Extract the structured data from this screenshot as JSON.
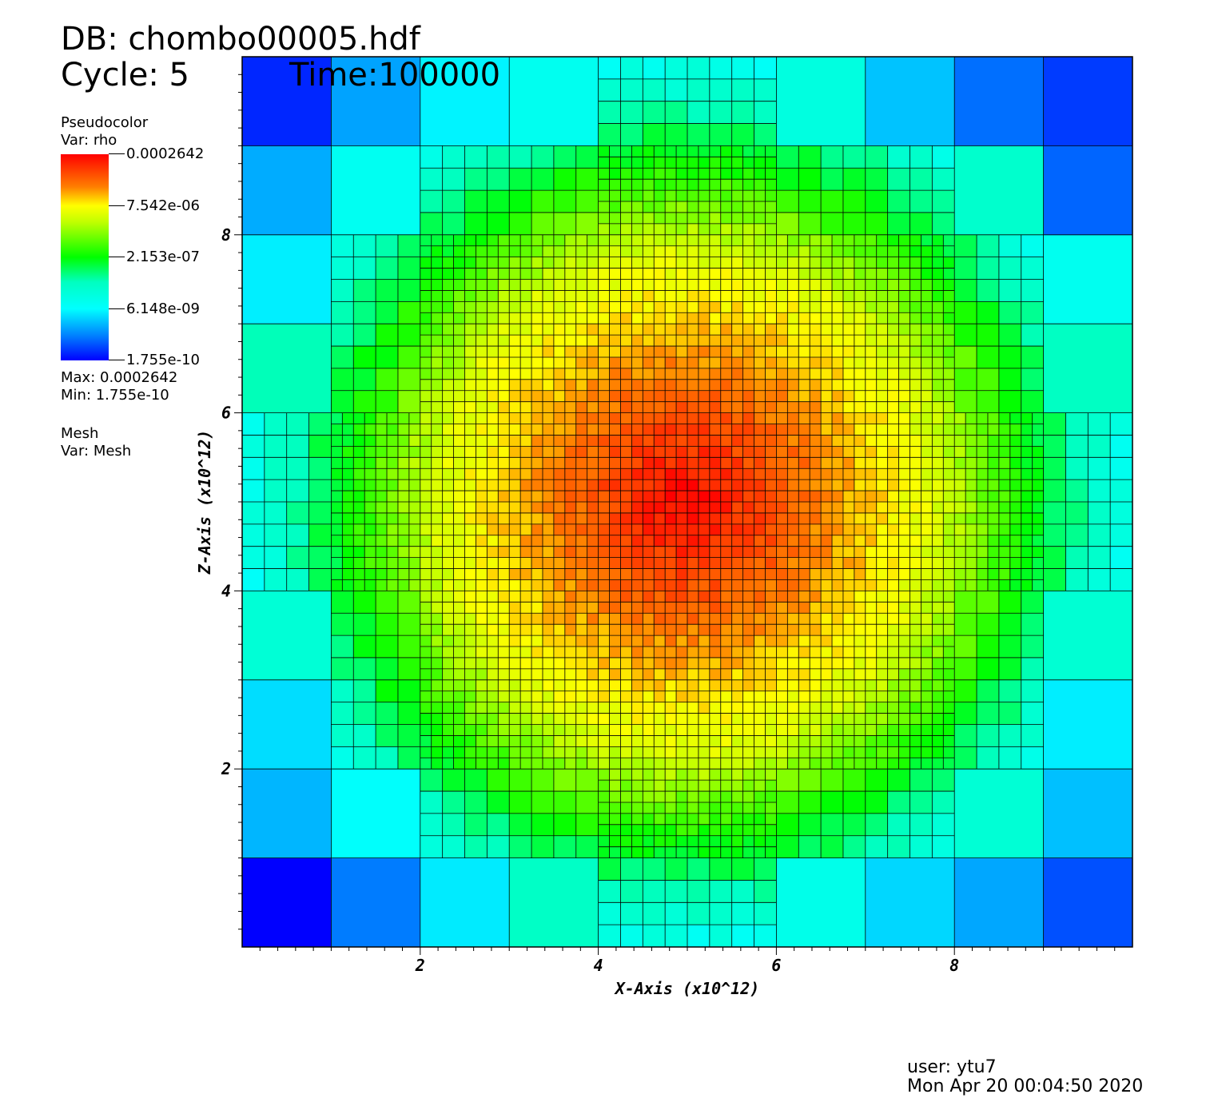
{
  "header": {
    "database": "DB: chombo00005.hdf",
    "cycle": "Cycle: 5",
    "time": "Time:100000"
  },
  "legend": {
    "plot_type": "Pseudocolor",
    "variable": "Var: rho",
    "colorbar_labels": [
      "0.0002642",
      "7.542e-06",
      "2.153e-07",
      "6.148e-09",
      "1.755e-10"
    ],
    "max_text": "Max:  0.0002642",
    "min_text": "Min:  1.755e-10",
    "mesh_plot_type": "Mesh",
    "mesh_variable": "Var: Mesh",
    "colormap": "hot-desaturated-rainbow",
    "scale": "log"
  },
  "footer": {
    "user": "user: ytu7",
    "timestamp": "Mon Apr 20 00:04:50 2020"
  },
  "chart_data": {
    "type": "heatmap",
    "xlabel": "X-Axis (x10^12)",
    "ylabel": "Z-Axis (x10^12)",
    "xlim": [
      0,
      10
    ],
    "ylim": [
      0,
      10
    ],
    "x_ticks": [
      "2",
      "4",
      "6",
      "8"
    ],
    "y_ticks": [
      "2",
      "4",
      "6",
      "8"
    ],
    "x_tick_values": [
      2,
      4,
      6,
      8
    ],
    "y_tick_values": [
      2,
      4,
      6,
      8
    ],
    "variable": "rho",
    "value_range": [
      1.755e-10,
      0.0002642
    ],
    "mesh": "AMR mesh overlay (3 refinement levels)",
    "peak_center": [
      5,
      5
    ]
  }
}
